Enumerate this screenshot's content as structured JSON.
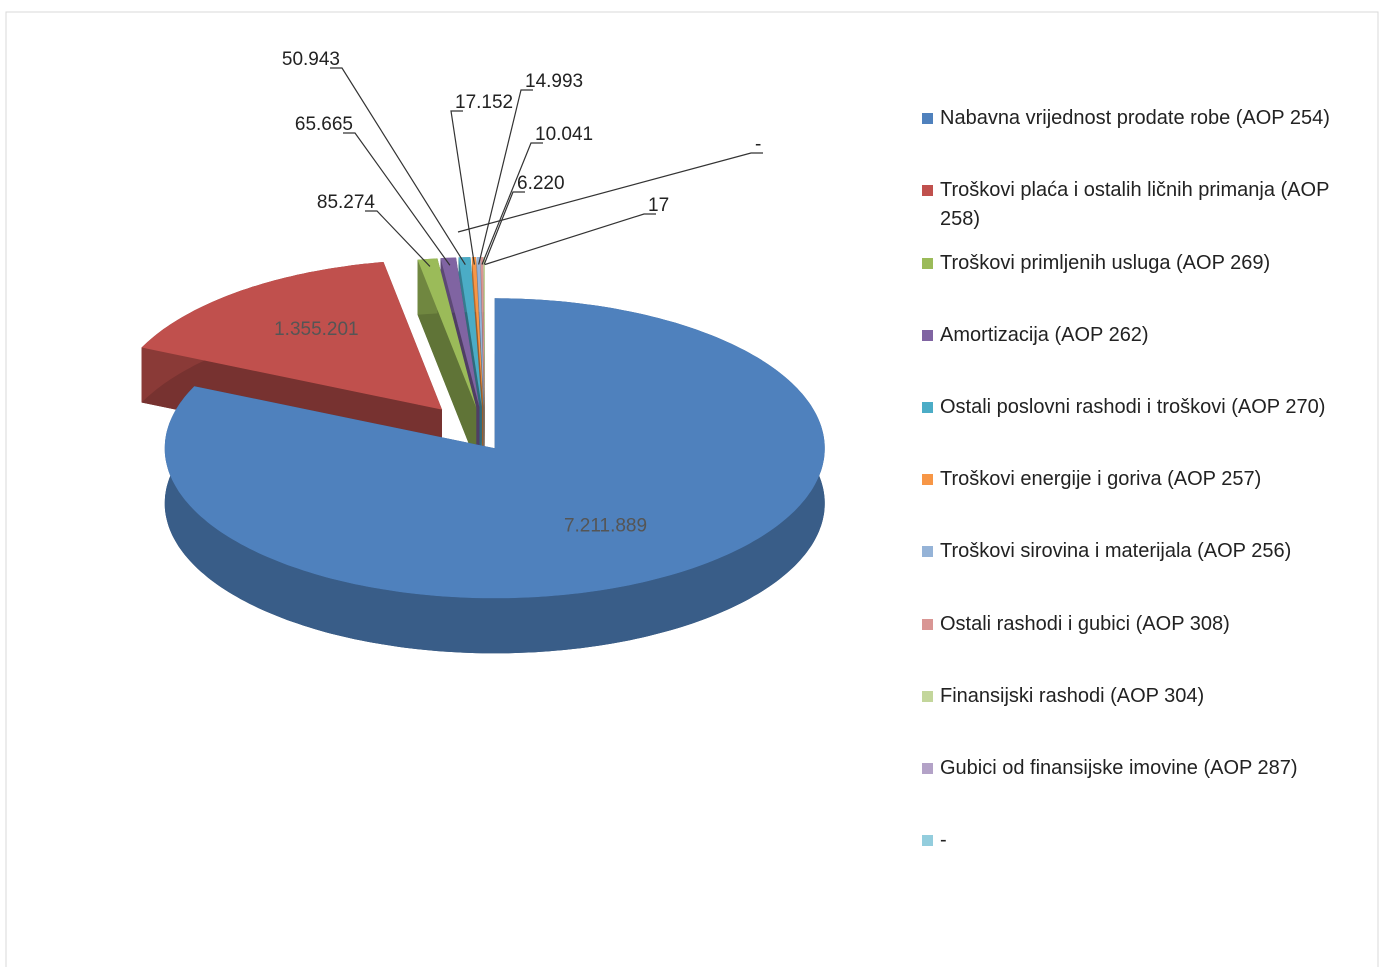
{
  "chart_data": {
    "type": "pie",
    "categories": [
      "Nabavna vrijednost prodate robe (AOP 254)",
      "Troškovi plaća i ostalih ličnih primanja (AOP 258)",
      "Troškovi primljenih usluga (AOP 269)",
      "Amortizacija (AOP 262)",
      "Ostali poslovni rashodi i troškovi (AOP 270)",
      "Troškovi energije i goriva (AOP 257)",
      "Troškovi sirovina i materijala (AOP 256)",
      "Ostali rashodi i gubici (AOP 308)",
      "Finansijski rashodi (AOP 304)",
      "Gubici od finansijske imovine (AOP 287)",
      "-"
    ],
    "values": [
      7211889,
      1355201,
      85274,
      65665,
      50943,
      17152,
      14993,
      10041,
      6220,
      17,
      null
    ],
    "value_labels": [
      "7.211.889",
      "1.355.201",
      "85.274",
      "65.665",
      "50.943",
      "17.152",
      "14.993",
      "10.041",
      "6.220",
      "17",
      "-"
    ],
    "colors": [
      "#4f81bd",
      "#c0504d",
      "#9bbb59",
      "#8064a2",
      "#4bacc6",
      "#f79646",
      "#95b3d7",
      "#d99694",
      "#c3d69b",
      "#b3a2c7",
      "#93cddd"
    ],
    "legend": "right"
  }
}
